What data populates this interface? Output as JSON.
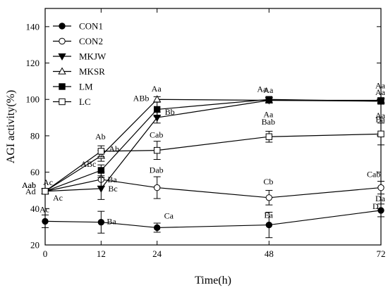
{
  "chart_data": {
    "type": "line",
    "title": "",
    "xlabel": "Time(h)",
    "ylabel": "AGI activity(%)",
    "x": [
      0,
      12,
      24,
      48,
      72
    ],
    "xlim": [
      0,
      72
    ],
    "ylim": [
      20,
      150
    ],
    "xticks": [
      0,
      12,
      24,
      48,
      72
    ],
    "yticks": [
      20,
      40,
      60,
      80,
      100,
      120,
      140
    ],
    "grid": false,
    "legend_position": "top-left",
    "series": [
      {
        "name": "CON1",
        "marker": "filled-circle",
        "values": [
          33,
          32.5,
          29.5,
          31,
          39
        ],
        "errors": [
          3.5,
          6,
          2.5,
          7,
          3.5
        ],
        "labels": [
          "Ac",
          "Ba",
          "Ca",
          "Ea",
          "Da"
        ],
        "extra_labels": [
          "D"
        ]
      },
      {
        "name": "CON2",
        "marker": "open-circle",
        "values": [
          49.5,
          56,
          51.5,
          46,
          51.5
        ],
        "errors": [
          1.5,
          4,
          6,
          4,
          3.5
        ],
        "labels": [
          "Ad",
          "Ba",
          "Dab",
          "Cb",
          "Cab"
        ]
      },
      {
        "name": "MKJW",
        "marker": "filled-triangle-down",
        "values": [
          49.5,
          51,
          90,
          99.5,
          99
        ],
        "errors": [
          1.5,
          6,
          3,
          1.5,
          1.5
        ],
        "labels": [
          "Ac",
          "Bc",
          "Bb",
          "Aa",
          "Aa"
        ]
      },
      {
        "name": "MKSR",
        "marker": "open-triangle-up",
        "values": [
          49.5,
          69,
          100,
          99.5,
          99.5
        ],
        "errors": [
          1.5,
          3,
          1.5,
          1.5,
          1.5
        ],
        "labels": [
          "Ac",
          "Ab",
          "Aa",
          "Aa",
          "Aa"
        ]
      },
      {
        "name": "LM",
        "marker": "filled-square",
        "values": [
          49.5,
          61,
          94.5,
          100,
          99
        ],
        "errors": [
          1.5,
          3,
          4,
          1.5,
          1.5
        ],
        "labels": [
          "Aab",
          "ABc",
          "ABb",
          "Aa",
          "Aa"
        ]
      },
      {
        "name": "LC",
        "marker": "open-square",
        "values": [
          49.5,
          71.5,
          72,
          79.5,
          81
        ],
        "errors": [
          1.5,
          3,
          5,
          3,
          6
        ],
        "labels": [
          "Aab",
          "Ab",
          "Cab",
          "Bab",
          "Ba"
        ]
      }
    ]
  }
}
